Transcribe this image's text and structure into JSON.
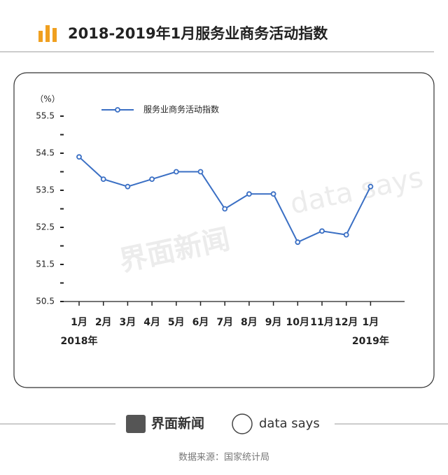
{
  "header": {
    "title": "2018-2019年1月服务业商务活动指数"
  },
  "chart_data": {
    "type": "line",
    "unit_label": "（%）",
    "categories": [
      "1月",
      "2月",
      "3月",
      "4月",
      "5月",
      "6月",
      "7月",
      "8月",
      "9月",
      "10月",
      "11月",
      "12月",
      "1月"
    ],
    "year_labels": [
      {
        "index": 0,
        "label": "2018年"
      },
      {
        "index": 12,
        "label": "2019年"
      }
    ],
    "series": [
      {
        "name": "服务业商务活动指数",
        "color": "#3a6fc4",
        "values": [
          54.4,
          53.8,
          53.6,
          53.8,
          54.0,
          54.0,
          53.0,
          53.4,
          53.4,
          52.1,
          52.4,
          52.3,
          53.6
        ]
      }
    ],
    "ylim": [
      50.5,
      55.5
    ],
    "yticks": [
      50.5,
      51.5,
      52.5,
      53.5,
      54.5,
      55.5
    ],
    "yminor_ticks": [
      51,
      52,
      53,
      54,
      55
    ],
    "legend": "top-left"
  },
  "watermarks": [
    "界面新闻",
    "data says"
  ],
  "footer": {
    "brand": "界面新闻",
    "partner": "data says",
    "source": "数据来源：国家统计局"
  }
}
